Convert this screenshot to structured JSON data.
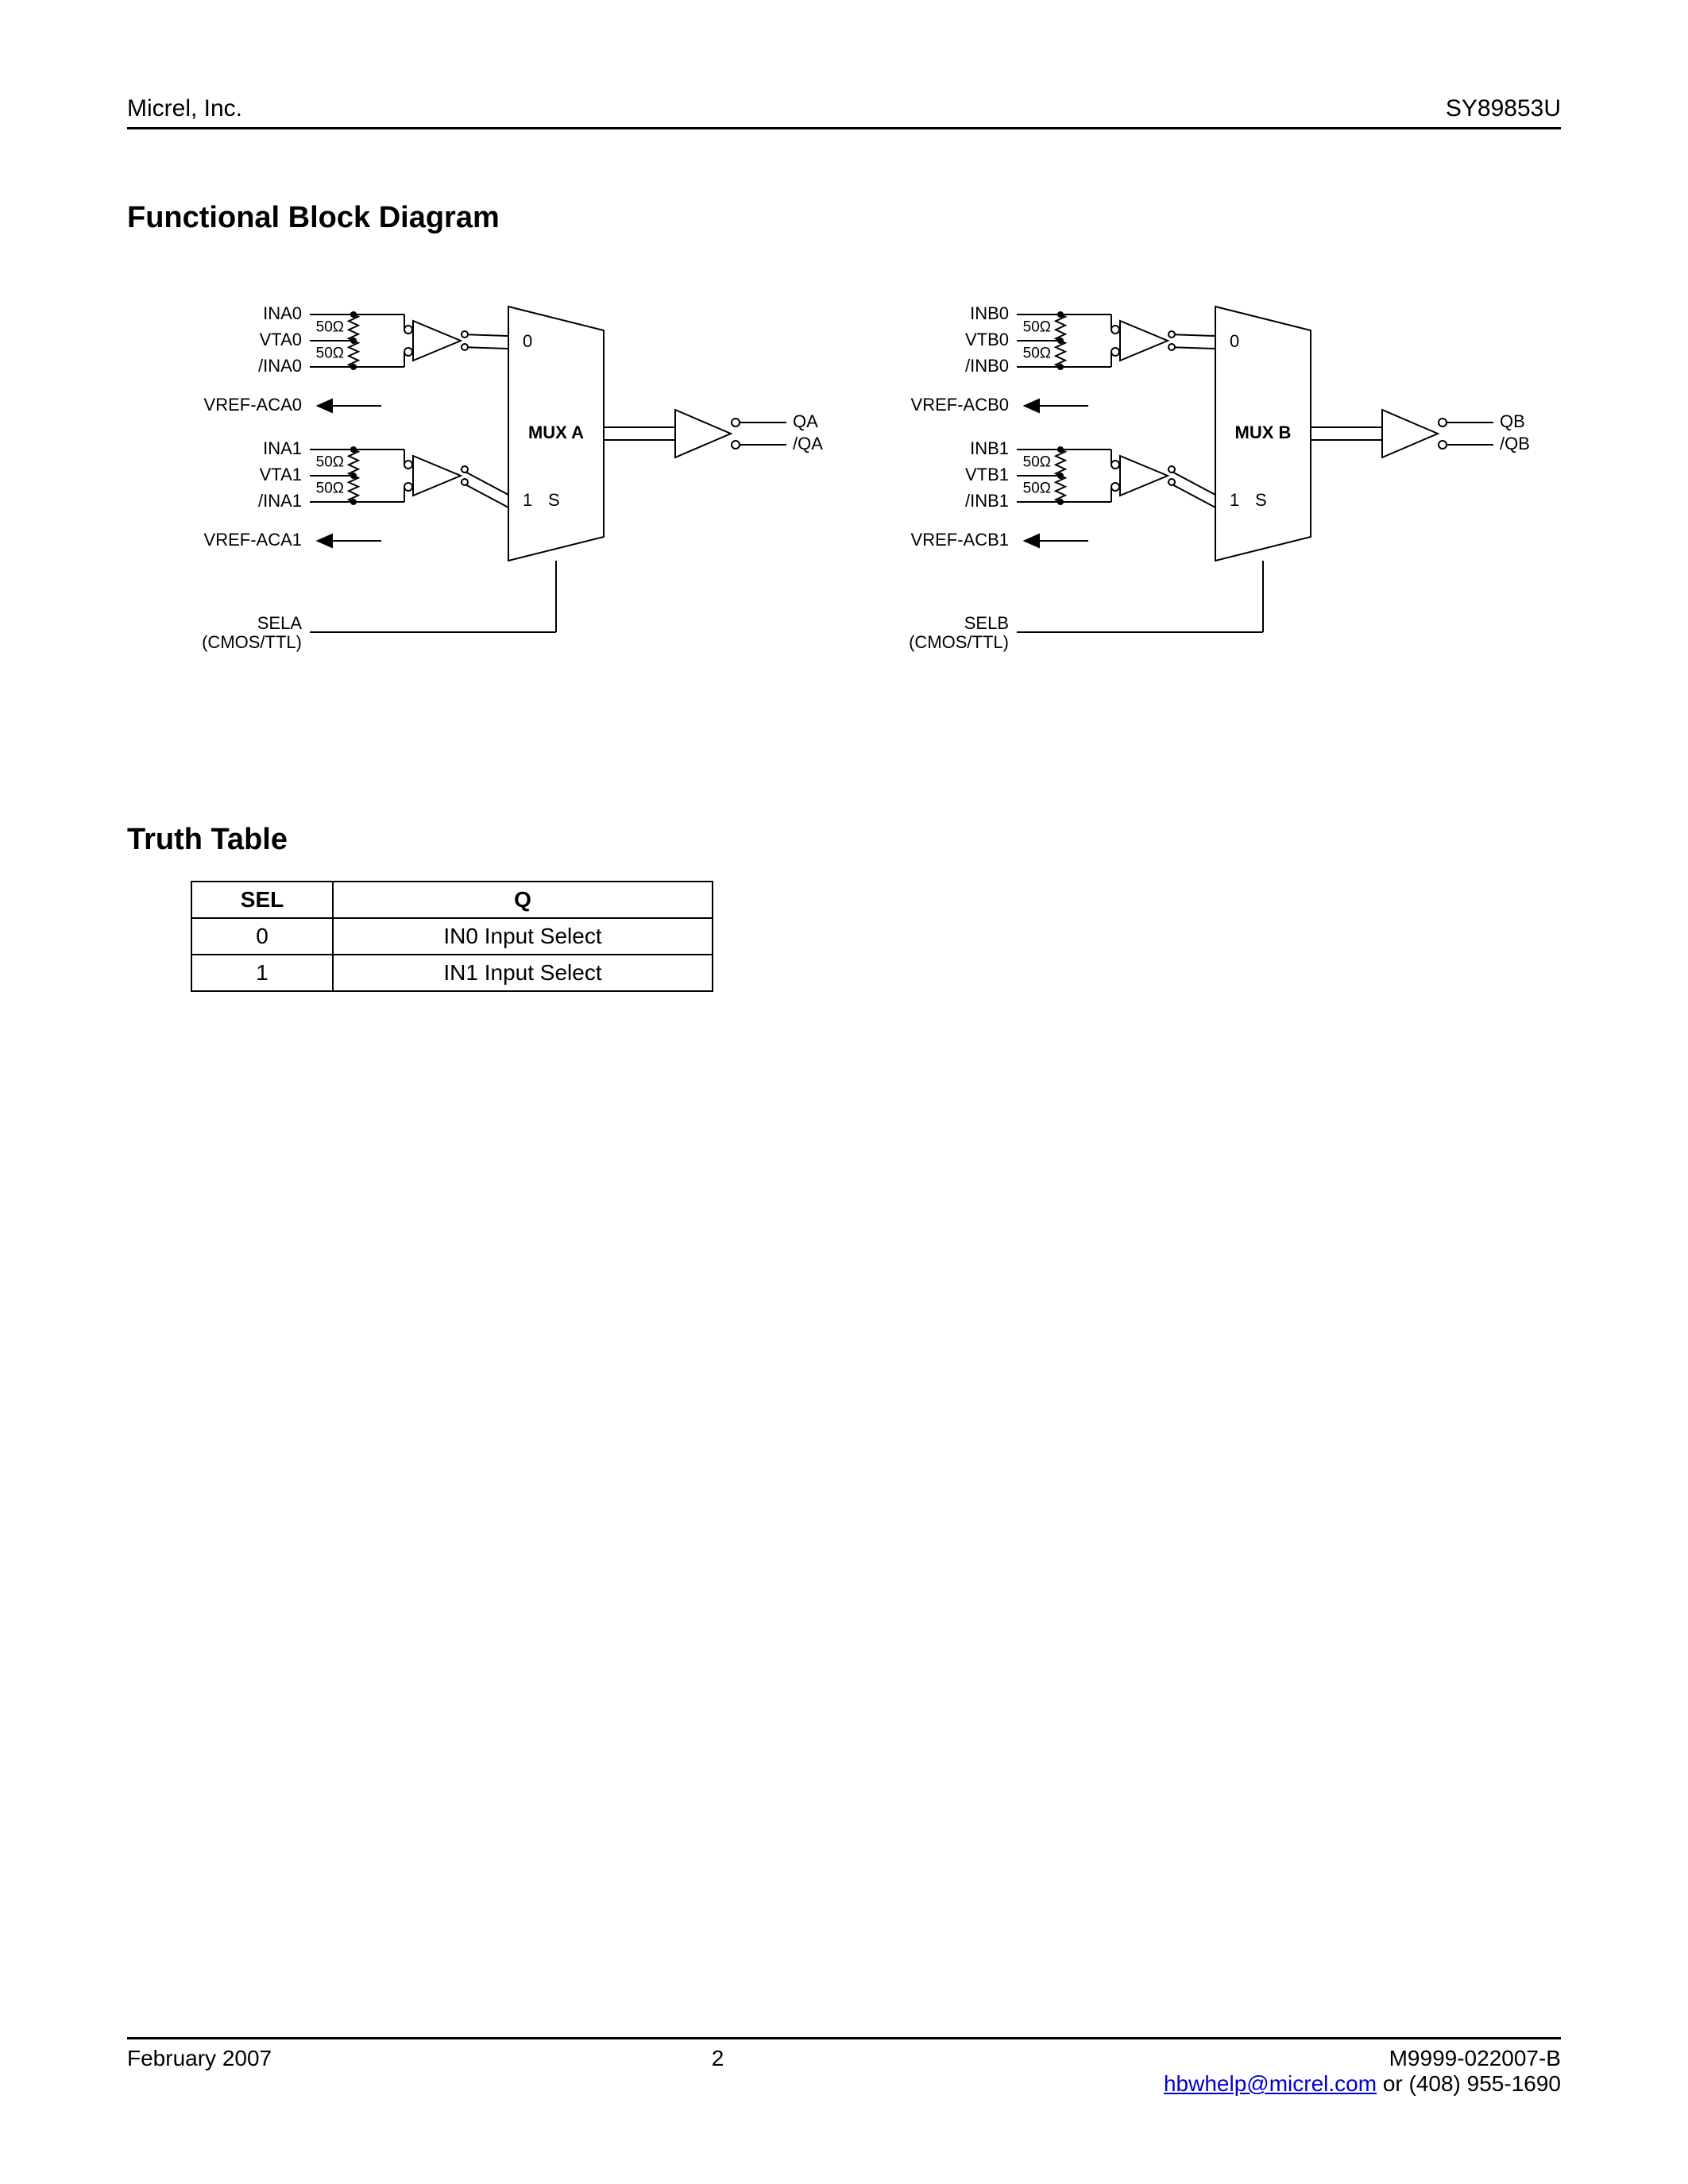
{
  "header": {
    "company": "Micrel, Inc.",
    "part_number": "SY89853U"
  },
  "section_titles": {
    "block_diagram": "Functional Block Diagram",
    "truth_table": "Truth Table"
  },
  "diagram_style": {
    "stroke_color": "#000000",
    "stroke_width": 2,
    "font_size": 22,
    "font_size_mux": 22,
    "resistor_label": "50Ω",
    "mux_bg": "#ffffff"
  },
  "diagram_a": {
    "signals_top": [
      "INA0",
      "VTA0",
      "/INA0"
    ],
    "vref_top": "VREF-ACA0",
    "signals_bot": [
      "INA1",
      "VTA1",
      "/INA1"
    ],
    "vref_bot": "VREF-ACA1",
    "sel_label_top": "SELA",
    "sel_label_bot": "(CMOS/TTL)",
    "mux_label": "MUX A",
    "mux_top_num": "0",
    "mux_bot_num": "1",
    "mux_sel_char": "S",
    "out_top": "QA",
    "out_bot": "/QA"
  },
  "diagram_b": {
    "signals_top": [
      "INB0",
      "VTB0",
      "/INB0"
    ],
    "vref_top": "VREF-ACB0",
    "signals_bot": [
      "INB1",
      "VTB1",
      "/INB1"
    ],
    "vref_bot": "VREF-ACB1",
    "sel_label_top": "SELB",
    "sel_label_bot": "(CMOS/TTL)",
    "mux_label": "MUX B",
    "mux_top_num": "0",
    "mux_bot_num": "1",
    "mux_sel_char": "S",
    "out_top": "QB",
    "out_bot": "/QB"
  },
  "truth_table": {
    "columns": [
      "SEL",
      "Q"
    ],
    "rows": [
      [
        "0",
        "IN0 Input Select"
      ],
      [
        "1",
        "IN1 Input Select"
      ]
    ]
  },
  "footer": {
    "date": "February 2007",
    "page": "2",
    "doc_id": "M9999-022007-B",
    "email": "hbwhelp@micrel.com",
    "contact_suffix": " or (408) 955-1690"
  }
}
